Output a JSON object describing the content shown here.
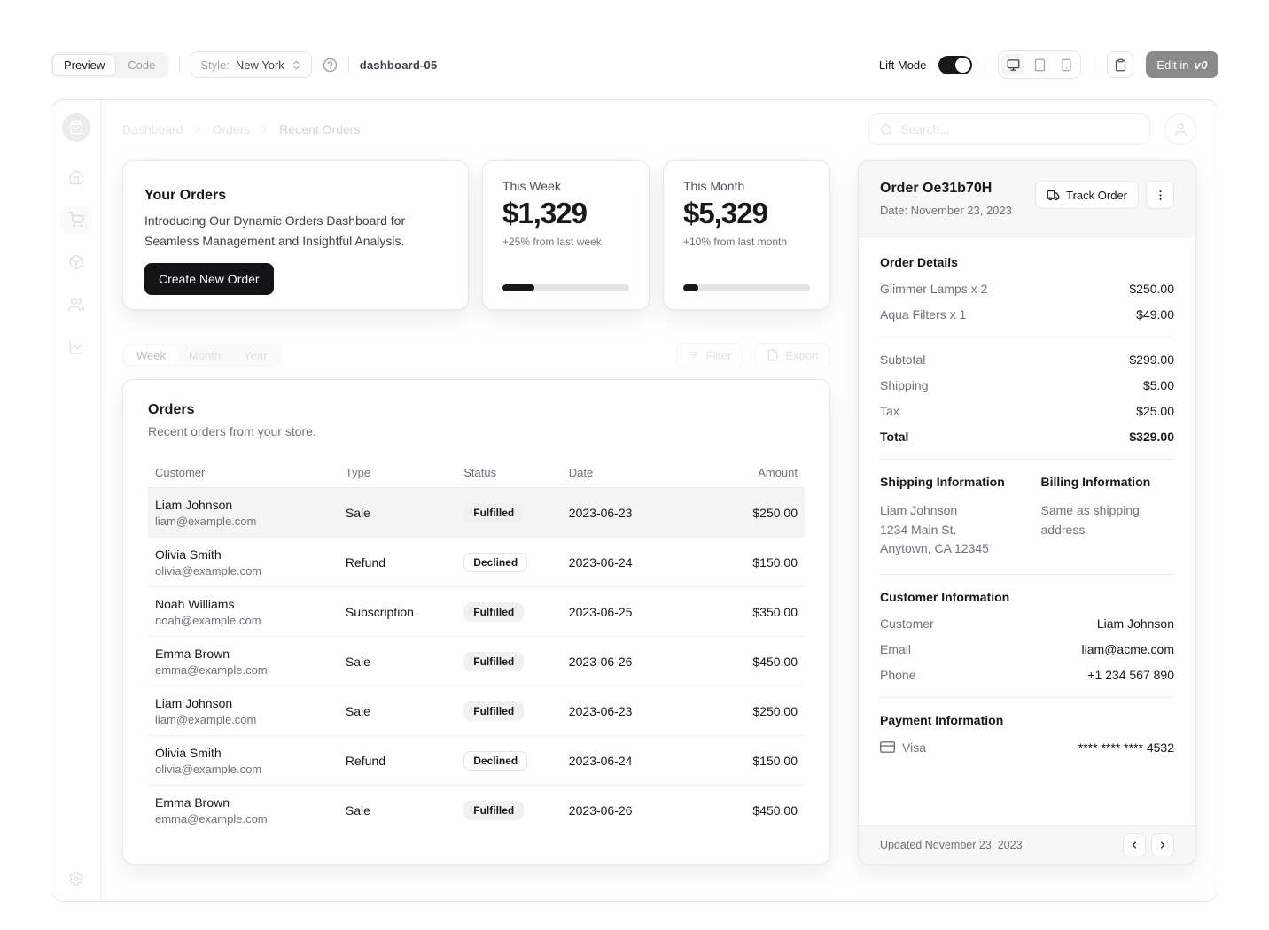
{
  "toolbar": {
    "preview_label": "Preview",
    "code_label": "Code",
    "style_label": "Style:",
    "style_value": "New York",
    "project_name": "dashboard-05",
    "lift_mode_label": "Lift Mode",
    "edit_in_label": "Edit in",
    "v0_logo": "v0"
  },
  "header": {
    "breadcrumb": [
      "Dashboard",
      "Orders",
      "Recent Orders"
    ],
    "search_placeholder": "Search..."
  },
  "promo_card": {
    "title": "Your Orders",
    "description": "Introducing Our Dynamic Orders Dashboard for Seamless Management and Insightful Analysis.",
    "button_label": "Create New Order"
  },
  "stat_cards": [
    {
      "label": "This Week",
      "value": "$1,329",
      "change": "+25% from last week",
      "progress": 25
    },
    {
      "label": "This Month",
      "value": "$5,329",
      "change": "+10% from last month",
      "progress": 12
    }
  ],
  "period_tabs": [
    "Week",
    "Month",
    "Year"
  ],
  "table_actions": {
    "filter_label": "Filter",
    "export_label": "Export"
  },
  "orders_table": {
    "title": "Orders",
    "subtitle": "Recent orders from your store.",
    "columns": [
      "Customer",
      "Type",
      "Status",
      "Date",
      "Amount"
    ],
    "rows": [
      {
        "customer": "Liam Johnson",
        "email": "liam@example.com",
        "type": "Sale",
        "status": "Fulfilled",
        "date": "2023-06-23",
        "amount": "$250.00"
      },
      {
        "customer": "Olivia Smith",
        "email": "olivia@example.com",
        "type": "Refund",
        "status": "Declined",
        "date": "2023-06-24",
        "amount": "$150.00"
      },
      {
        "customer": "Noah Williams",
        "email": "noah@example.com",
        "type": "Subscription",
        "status": "Fulfilled",
        "date": "2023-06-25",
        "amount": "$350.00"
      },
      {
        "customer": "Emma Brown",
        "email": "emma@example.com",
        "type": "Sale",
        "status": "Fulfilled",
        "date": "2023-06-26",
        "amount": "$450.00"
      },
      {
        "customer": "Liam Johnson",
        "email": "liam@example.com",
        "type": "Sale",
        "status": "Fulfilled",
        "date": "2023-06-23",
        "amount": "$250.00"
      },
      {
        "customer": "Olivia Smith",
        "email": "olivia@example.com",
        "type": "Refund",
        "status": "Declined",
        "date": "2023-06-24",
        "amount": "$150.00"
      },
      {
        "customer": "Emma Brown",
        "email": "emma@example.com",
        "type": "Sale",
        "status": "Fulfilled",
        "date": "2023-06-26",
        "amount": "$450.00"
      }
    ]
  },
  "order_panel": {
    "title": "Order Oe31b70H",
    "date": "Date: November 23, 2023",
    "track_label": "Track Order",
    "details_title": "Order Details",
    "items": [
      {
        "name": "Glimmer Lamps x 2",
        "price": "$250.00"
      },
      {
        "name": "Aqua Filters x 1",
        "price": "$49.00"
      }
    ],
    "totals": {
      "subtotal_label": "Subtotal",
      "subtotal": "$299.00",
      "shipping_label": "Shipping",
      "shipping": "$5.00",
      "tax_label": "Tax",
      "tax": "$25.00",
      "total_label": "Total",
      "total": "$329.00"
    },
    "shipping_info": {
      "title": "Shipping Information",
      "line1": "Liam Johnson",
      "line2": "1234 Main St.",
      "line3": "Anytown, CA 12345"
    },
    "billing_info": {
      "title": "Billing Information",
      "text": "Same as shipping address"
    },
    "customer_info": {
      "title": "Customer Information",
      "customer_label": "Customer",
      "customer": "Liam Johnson",
      "email_label": "Email",
      "email": "liam@acme.com",
      "phone_label": "Phone",
      "phone": "+1 234 567 890"
    },
    "payment_info": {
      "title": "Payment Information",
      "method": "Visa",
      "number": "**** **** **** 4532"
    },
    "footer": {
      "updated": "Updated November 23, 2023"
    }
  },
  "colors": {
    "accent": "#18181b",
    "dim": "#e4e4e4",
    "panel_bg": "#f7f7f7"
  }
}
